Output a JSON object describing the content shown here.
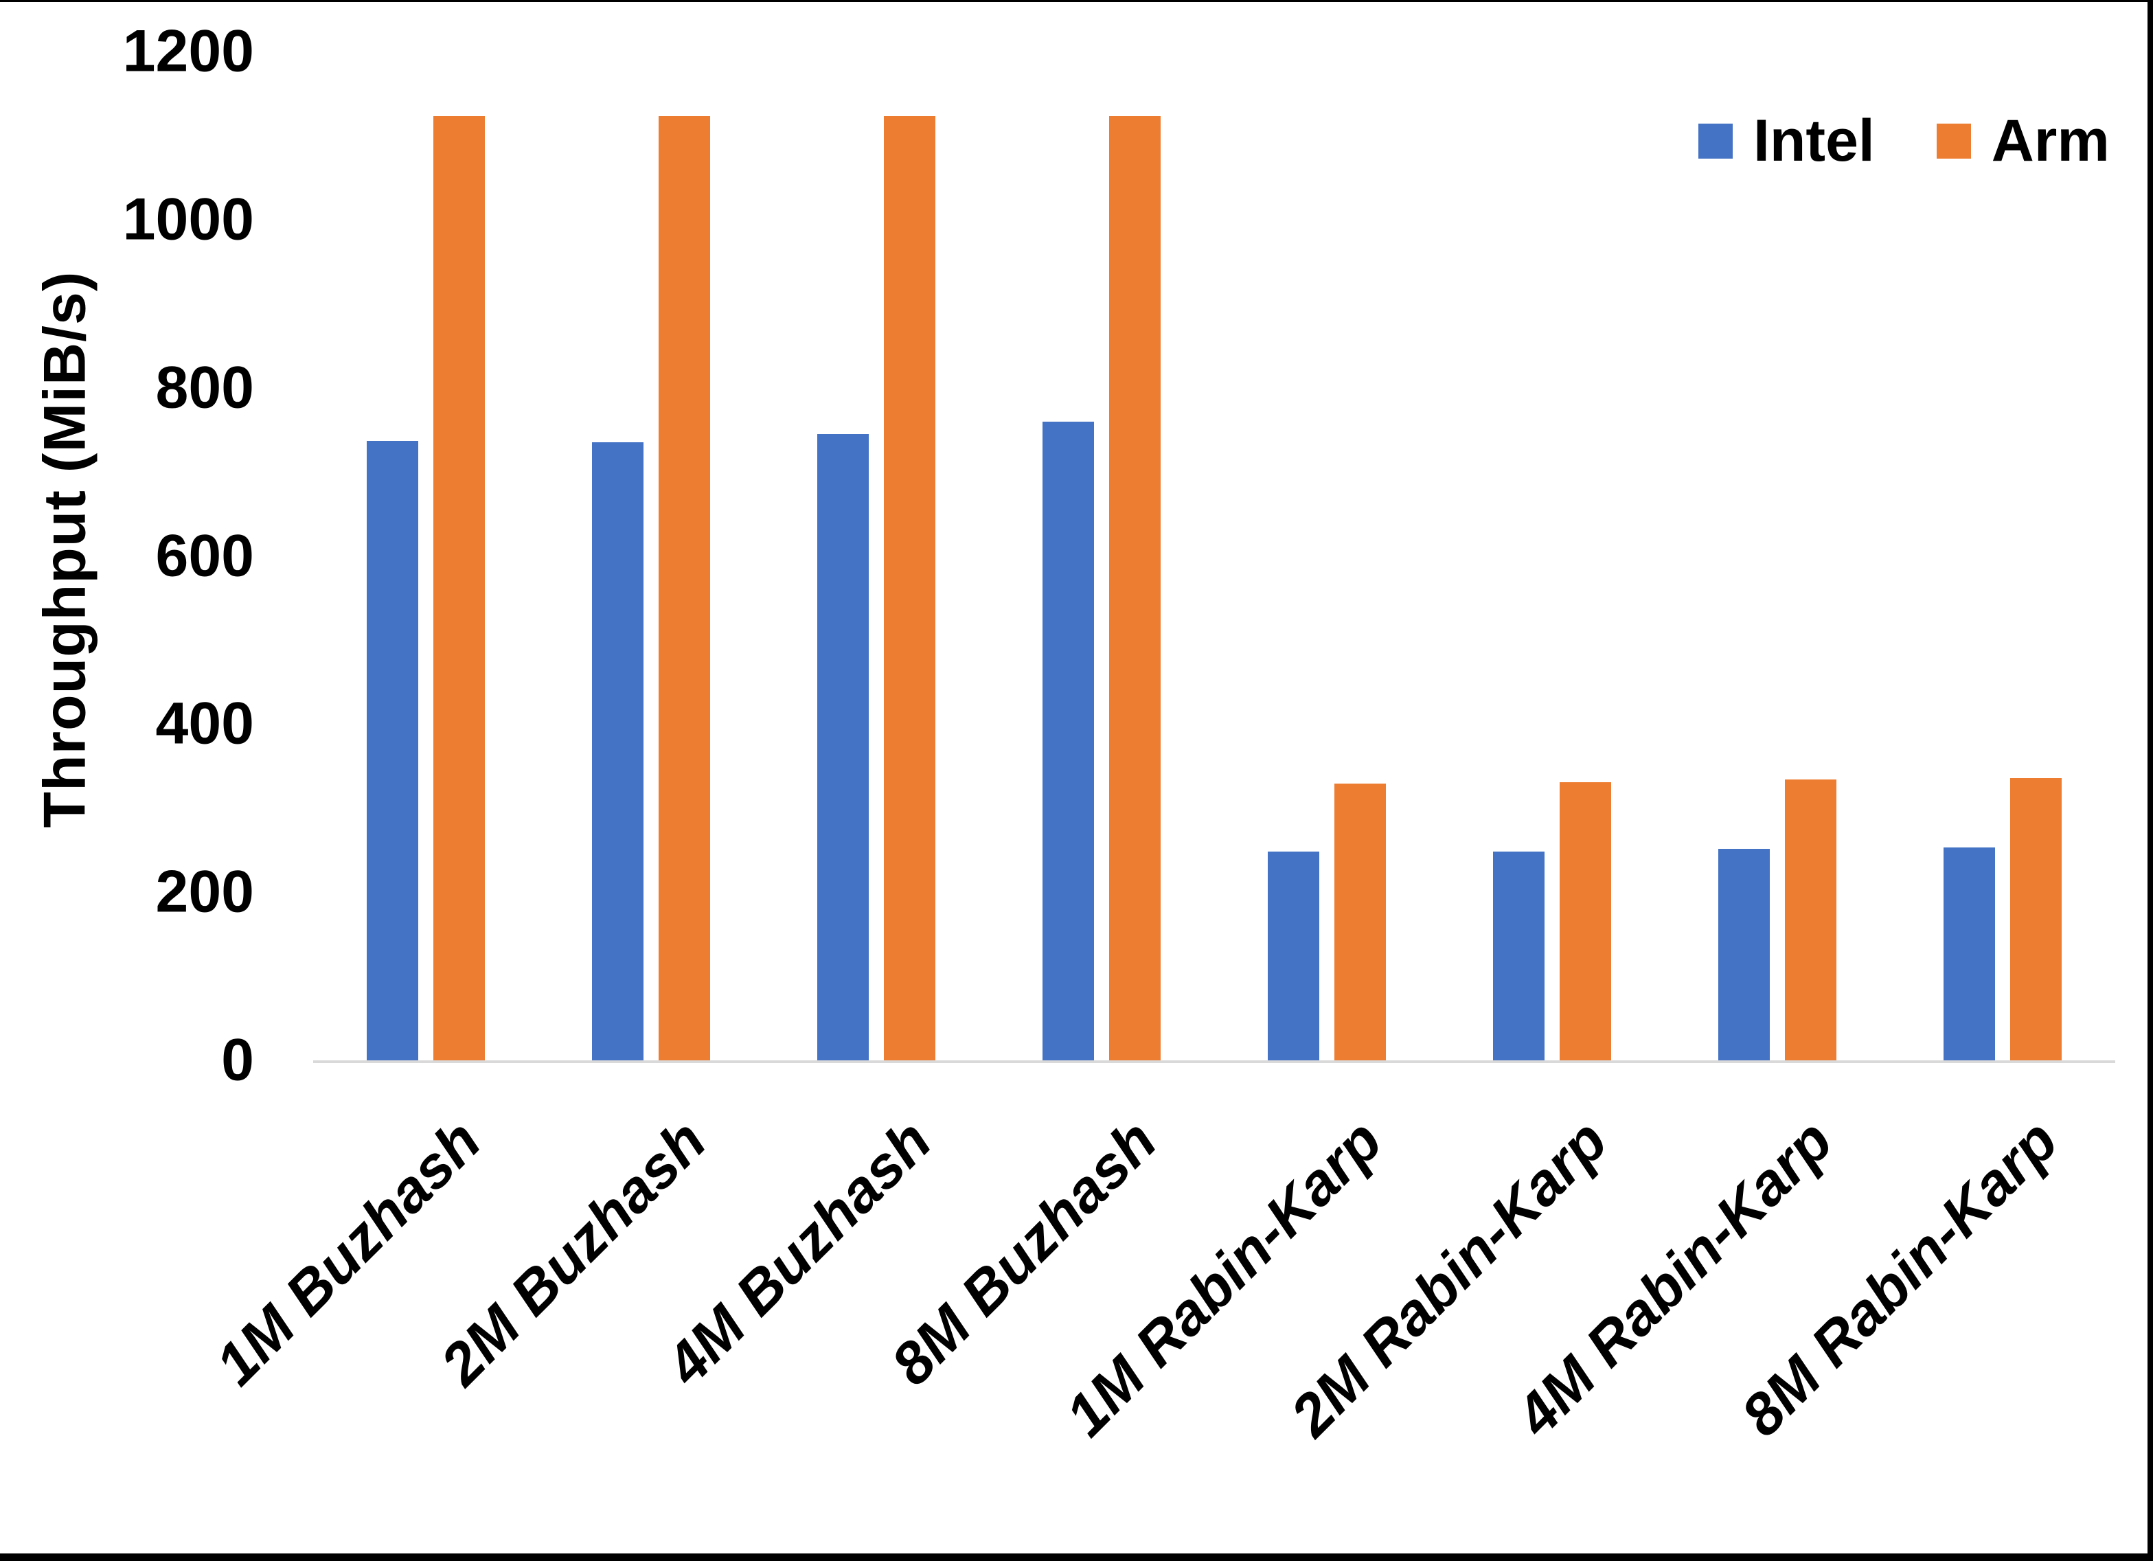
{
  "chart_data": {
    "type": "bar",
    "title": "",
    "categories": [
      "1M Buzhash",
      "2M Buzhash",
      "4M Buzhash",
      "8M Buzhash",
      "1M Rabin-Karp",
      "2M Rabin-Karp",
      "4M Rabin-Karp",
      "8M Rabin-Karp"
    ],
    "series": [
      {
        "name": "Intel",
        "color": "#4472C4",
        "values": [
          737,
          735,
          745,
          760,
          248,
          248,
          252,
          253
        ]
      },
      {
        "name": "Arm",
        "color": "#ED7D31",
        "values": [
          1123,
          1123,
          1123,
          1123,
          329,
          331,
          334,
          336
        ]
      }
    ],
    "xlabel": "",
    "ylabel": "Throughput (MiB/s)",
    "ylim": [
      0,
      1200
    ],
    "yticks": [
      0,
      200,
      400,
      600,
      800,
      1000,
      1200
    ],
    "grid": false,
    "legend_position": "top-right",
    "axis_line_color": "#D9D9D9",
    "text_color": "#000000",
    "background_color": "#FFFFFF",
    "frame_color": "#000000"
  }
}
